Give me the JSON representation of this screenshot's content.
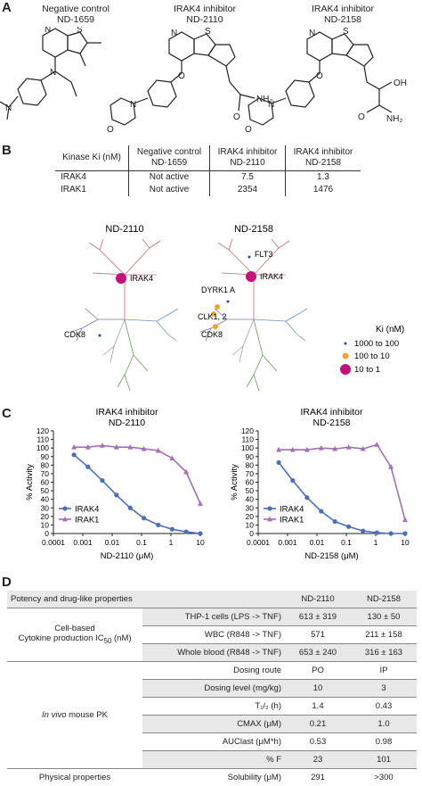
{
  "panels": {
    "a": "A",
    "b": "B",
    "c": "C",
    "d": "D"
  },
  "structures": [
    {
      "role": "Negative control",
      "id": "ND-1659"
    },
    {
      "role": "IRAK4 inhibitor",
      "id": "ND-2110"
    },
    {
      "role": "IRAK4 inhibitor",
      "id": "ND-2158"
    }
  ],
  "atoms": {
    "N": "N",
    "S": "S",
    "O": "O",
    "NH2": "NH₂",
    "OH": "OH"
  },
  "table_b": {
    "header": [
      "Kinase Ki (nM)",
      "Negative control ND-1659",
      "IRAK4 inhibitor ND-2110",
      "IRAK4 inhibitor ND-2158"
    ],
    "rows": [
      [
        "IRAK4",
        "Not active",
        "7.5",
        "1.3"
      ],
      [
        "IRAK1",
        "Not active",
        "2354",
        "1476"
      ]
    ]
  },
  "kinome": {
    "left": {
      "title": "ND-2110",
      "labels": [
        "IRAK4",
        "CDK8"
      ]
    },
    "right": {
      "title": "ND-2158",
      "labels": [
        "FLT3",
        "IRAK4",
        "DYRK1 A",
        "CLK1, 2",
        "CDK8"
      ]
    },
    "legend": {
      "title": "Ki (nM)",
      "items": [
        "1000 to 100",
        "100 to 10",
        "10 to 1"
      ],
      "colors": [
        "#1f4e9a",
        "#f2a52e",
        "#c4127a"
      ]
    }
  },
  "chart_data": [
    {
      "type": "line",
      "title": "IRAK4 inhibitor ND-2110",
      "xlabel": "ND-2110 (μM)",
      "ylabel": "% Activity",
      "xscale": "log",
      "xlim": [
        0.0001,
        10
      ],
      "ylim": [
        0,
        120
      ],
      "xticks": [
        "0.0001",
        "0.001",
        "0.01",
        "0.1",
        "1",
        "10"
      ],
      "yticks": [
        "0",
        "10",
        "20",
        "30",
        "40",
        "50",
        "60",
        "70",
        "80",
        "90",
        "100",
        "110",
        "120"
      ],
      "legend": "bottom-left",
      "series": [
        {
          "name": "IRAK4",
          "color": "#4b6fb8",
          "marker": "circle",
          "x": [
            0.0005,
            0.0015,
            0.0046,
            0.014,
            0.041,
            0.12,
            0.37,
            1.1,
            3.3,
            10
          ],
          "y": [
            92,
            78,
            62,
            45,
            30,
            18,
            10,
            5,
            2,
            0
          ]
        },
        {
          "name": "IRAK1",
          "color": "#a070b8",
          "marker": "triangle",
          "x": [
            0.0005,
            0.0015,
            0.0046,
            0.014,
            0.041,
            0.12,
            0.37,
            1.1,
            3.3,
            10
          ],
          "y": [
            101,
            101,
            103,
            101,
            101,
            99,
            97,
            88,
            72,
            35
          ]
        }
      ]
    },
    {
      "type": "line",
      "title": "IRAK4 inhibitor ND-2158",
      "xlabel": "ND-2158 (μM)",
      "ylabel": "% Activity",
      "xscale": "log",
      "xlim": [
        0.0001,
        10
      ],
      "ylim": [
        0,
        120
      ],
      "xticks": [
        "0.0001",
        "0.001",
        "0.01",
        "0.1",
        "1",
        "10"
      ],
      "yticks": [
        "0",
        "10",
        "20",
        "30",
        "40",
        "50",
        "60",
        "70",
        "80",
        "90",
        "100",
        "110",
        "120"
      ],
      "legend": "bottom-left",
      "series": [
        {
          "name": "IRAK4",
          "color": "#4b6fb8",
          "marker": "circle",
          "x": [
            0.0005,
            0.0015,
            0.0046,
            0.014,
            0.041,
            0.12,
            0.37,
            1.1,
            3.3,
            10
          ],
          "y": [
            83,
            62,
            42,
            26,
            14,
            8,
            3,
            1,
            0,
            0
          ]
        },
        {
          "name": "IRAK1",
          "color": "#a070b8",
          "marker": "triangle",
          "x": [
            0.0005,
            0.0015,
            0.0046,
            0.014,
            0.041,
            0.12,
            0.37,
            1.1,
            3.3,
            10
          ],
          "y": [
            98,
            98,
            98,
            100,
            99,
            101,
            99,
            104,
            78,
            16
          ]
        }
      ]
    }
  ],
  "table_d": {
    "header": {
      "label": "Potency and drug-like properties",
      "col1": "ND-2110",
      "col2": "ND-2158"
    },
    "cytokine_group": {
      "line1": "Cell-based",
      "line2": "Cytokine production IC",
      "sub": "50",
      "unit": " (nM)"
    },
    "cytokine_rows": [
      {
        "name": "THP-1 cells (LPS -> TNF)",
        "v1": "613 ± 319",
        "v2": "130 ± 50"
      },
      {
        "name": "WBC (R848 -> TNF)",
        "v1": "571",
        "v2": "211 ± 158"
      },
      {
        "name": "Whole blood (R848 -> TNF)",
        "v1": "653 ± 240",
        "v2": "316 ± 163"
      }
    ],
    "pk_group": {
      "italic": "In vivo",
      "rest": " mouse PK"
    },
    "pk_rows": [
      {
        "name": "Dosing route",
        "v1": "PO",
        "v2": "IP"
      },
      {
        "name": "Dosing level (mg/kg)",
        "v1": "10",
        "v2": "3"
      },
      {
        "name": "T₁/₂ (h)",
        "v1": "1.4",
        "v2": "0.43"
      },
      {
        "name": "CMAX (μM)",
        "v1": "0.21",
        "v2": "1.0"
      },
      {
        "name": "AUClast (μM*h)",
        "v1": "0.53",
        "v2": "0.98"
      },
      {
        "name": "% F",
        "v1": "23",
        "v2": "101"
      }
    ],
    "phys": {
      "group": "Physical properties",
      "name": "Solubility (μM)",
      "v1": "291",
      "v2": ">300"
    }
  }
}
